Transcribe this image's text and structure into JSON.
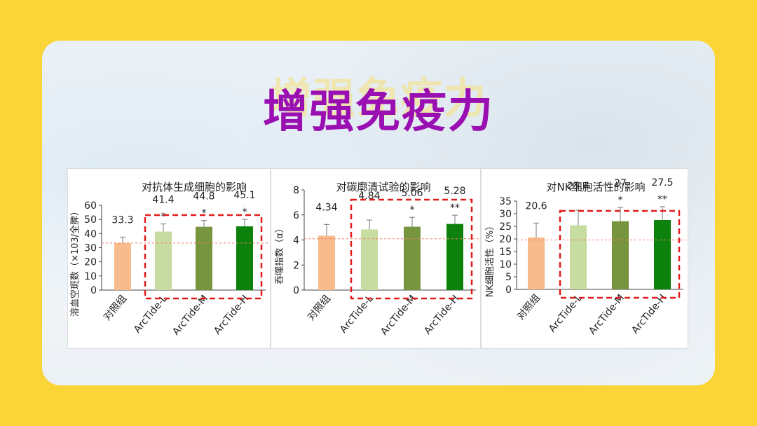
{
  "page": {
    "title": "增强免疫力"
  },
  "chart_data": [
    {
      "type": "bar",
      "title": "对抗体生成细胞的影响",
      "ylabel": "溶血空斑数（×103/全脾）",
      "ylim": [
        0,
        60
      ],
      "yticks": [
        0,
        10,
        20,
        30,
        40,
        50,
        60
      ],
      "categories": [
        "对照组",
        "ArcTide-L",
        "ArcTide-M",
        "ArcTide-H"
      ],
      "values": [
        33.3,
        41.4,
        44.8,
        45.1
      ],
      "value_labels": [
        "33.3",
        "41.4",
        "44.8",
        "45.1"
      ],
      "errors": [
        4.2,
        5.4,
        4.5,
        5.0
      ],
      "significance": [
        "",
        "*",
        "*",
        "*"
      ],
      "reference_line": 33.3,
      "colors": [
        "#f8bc8c",
        "#c6dca0",
        "#77953f",
        "#0c820d"
      ]
    },
    {
      "type": "bar",
      "title": "对碳廓清试验的影响",
      "ylabel": "吞噬指数（α）",
      "ylim": [
        0,
        8
      ],
      "yticks": [
        0,
        2,
        4,
        6,
        8
      ],
      "categories": [
        "对照组",
        "ArcTide-L",
        "ArcTide-M",
        "ArcTide-H"
      ],
      "values": [
        4.34,
        4.84,
        5.06,
        5.28
      ],
      "value_labels": [
        "4.34",
        "4.84",
        "5.06",
        "5.28"
      ],
      "errors": [
        0.9,
        0.75,
        0.75,
        0.7
      ],
      "significance": [
        "",
        "",
        "*",
        "**"
      ],
      "reference_line": 4.1,
      "colors": [
        "#f8bc8c",
        "#c6dca0",
        "#77953f",
        "#0c820d"
      ]
    },
    {
      "type": "bar",
      "title": "对NK细胞活性的影响",
      "ylabel": "NK细胞活性（%）",
      "ylim": [
        0,
        35
      ],
      "yticks": [
        0,
        5,
        10,
        15,
        20,
        25,
        30,
        35
      ],
      "categories": [
        "对照组",
        "ArcTide-L",
        "ArcTide-M",
        "ArcTide-H"
      ],
      "values": [
        20.6,
        25.4,
        27,
        27.5
      ],
      "value_labels": [
        "20.6",
        "25.4",
        "27",
        "27.5"
      ],
      "errors": [
        5.7,
        6.0,
        5.5,
        5.3
      ],
      "significance": [
        "",
        "",
        "*",
        "**"
      ],
      "reference_line": 19.6,
      "colors": [
        "#f8bc8c",
        "#c6dca0",
        "#77953f",
        "#0c820d"
      ]
    }
  ]
}
